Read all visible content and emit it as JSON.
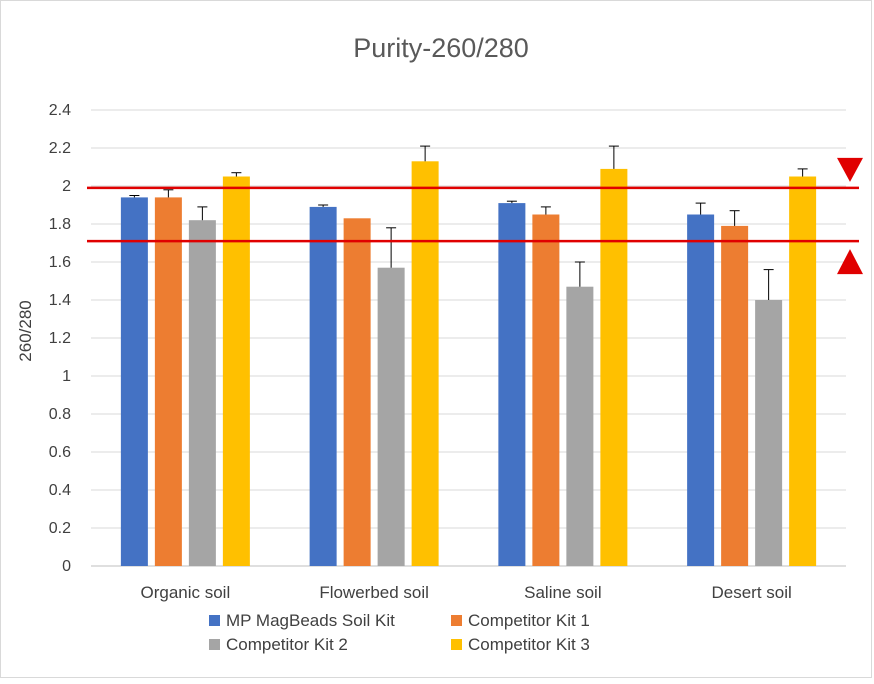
{
  "chart_data": {
    "type": "bar",
    "title": "Purity-260/280",
    "xlabel": "",
    "ylabel": "260/280",
    "ylim": [
      0,
      2.4
    ],
    "yticks": [
      "0",
      "0.2",
      "0.4",
      "0.6",
      "0.8",
      "1",
      "1.2",
      "1.4",
      "1.6",
      "1.8",
      "2",
      "2.2",
      "2.4"
    ],
    "grid": true,
    "legend_position": "bottom",
    "categories": [
      "Organic soil",
      "Flowerbed soil",
      "Saline soil",
      "Desert soil"
    ],
    "series": [
      {
        "name": "MP MagBeads Soil Kit",
        "color": "#4472c4",
        "values": [
          1.94,
          1.89,
          1.91,
          1.85
        ],
        "errors": [
          0.01,
          0.01,
          0.01,
          0.06
        ]
      },
      {
        "name": "Competitor Kit 1",
        "color": "#ed7d31",
        "values": [
          1.94,
          1.83,
          1.85,
          1.79
        ],
        "errors": [
          0.04,
          0.0,
          0.04,
          0.08
        ]
      },
      {
        "name": "Competitor Kit 2",
        "color": "#a5a5a5",
        "values": [
          1.82,
          1.57,
          1.47,
          1.4
        ],
        "errors": [
          0.07,
          0.21,
          0.13,
          0.16
        ]
      },
      {
        "name": "Competitor Kit 3",
        "color": "#ffc000",
        "values": [
          2.05,
          2.13,
          2.09,
          2.05
        ],
        "errors": [
          0.02,
          0.08,
          0.12,
          0.04
        ]
      }
    ],
    "reference_lines": [
      {
        "value": 1.99,
        "color": "#e00000",
        "marker": "down-triangle"
      },
      {
        "value": 1.71,
        "color": "#e00000",
        "marker": "up-triangle"
      }
    ]
  }
}
